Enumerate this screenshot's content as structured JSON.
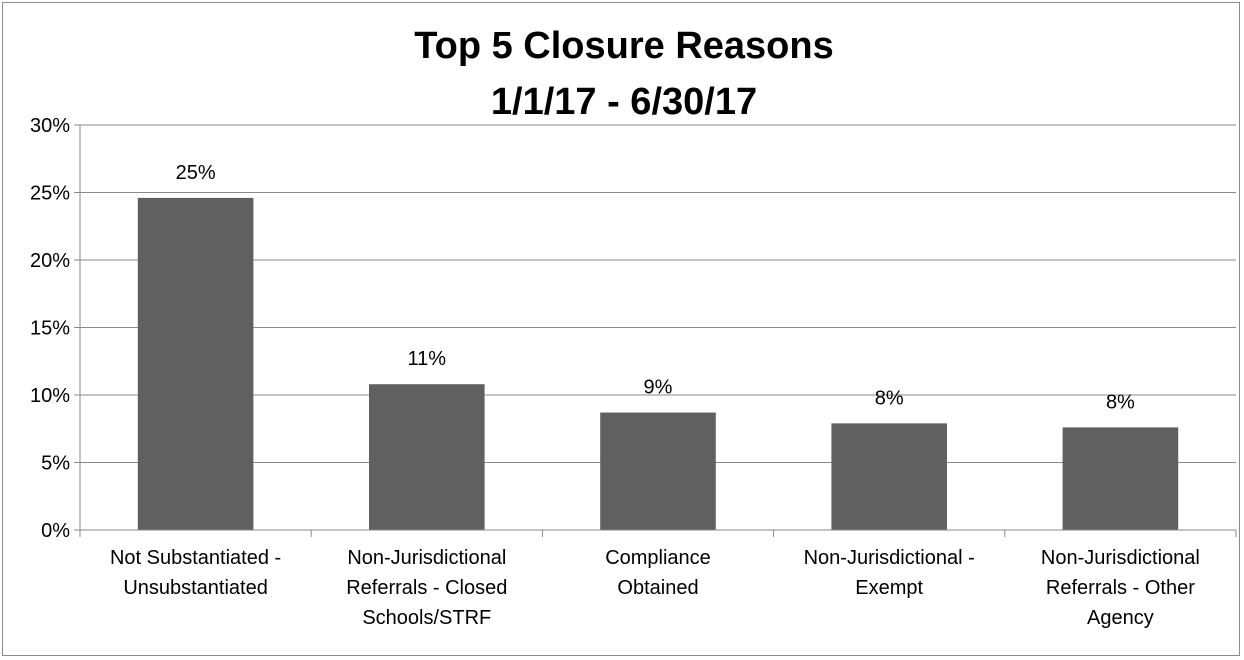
{
  "chart_data": {
    "type": "bar",
    "title_lines": [
      "Top 5 Closure Reasons",
      "1/1/17 - 6/30/17"
    ],
    "categories": [
      [
        "Not Substantiated -",
        "Unsubstantiated"
      ],
      [
        "Non-Jurisdictional",
        "Referrals - Closed",
        "Schools/STRF"
      ],
      [
        "Compliance",
        "Obtained"
      ],
      [
        "Non-Jurisdictional -",
        "Exempt"
      ],
      [
        "Non-Jurisdictional",
        "Referrals - Other",
        "Agency"
      ]
    ],
    "values": [
      24.6,
      10.8,
      8.7,
      7.9,
      7.6
    ],
    "data_labels": [
      "25%",
      "11%",
      "9%",
      "8%",
      "8%"
    ],
    "ylim": [
      0,
      30
    ],
    "yticks": [
      0,
      5,
      10,
      15,
      20,
      25,
      30
    ],
    "ytick_labels": [
      "0%",
      "5%",
      "10%",
      "15%",
      "20%",
      "25%",
      "30%"
    ],
    "grid": true,
    "legend": "none",
    "bar_color": "#606060",
    "grid_color": "#8a8a8a"
  }
}
